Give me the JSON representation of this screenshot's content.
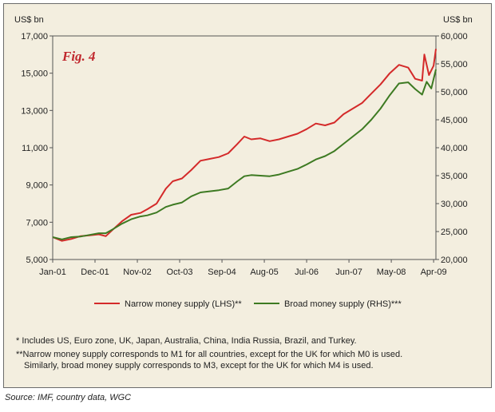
{
  "chart_data": {
    "type": "line",
    "title": "Fig. 4",
    "left_axis": {
      "unit": "US$ bn",
      "ylim": [
        5000,
        17000
      ],
      "ticks": [
        "5,000",
        "7,000",
        "9,000",
        "11,000",
        "13,000",
        "15,000",
        "17,000"
      ]
    },
    "right_axis": {
      "unit": "US$ bn",
      "ylim": [
        20000,
        60000
      ],
      "ticks": [
        "20,000",
        "25,000",
        "30,000",
        "35,000",
        "40,000",
        "45,000",
        "50,000",
        "55,000",
        "60,000"
      ]
    },
    "x_ticks": [
      "Jan-01",
      "Dec-01",
      "Nov-02",
      "Oct-03",
      "Sep-04",
      "Aug-05",
      "Jul-06",
      "Jun-07",
      "May-08",
      "Apr-09"
    ],
    "x_range": [
      2001.0,
      2009.3
    ],
    "series": [
      {
        "name": "Narrow money supply (LHS)**",
        "axis": "left",
        "color": "#d42a2a",
        "points": [
          [
            2001.0,
            6200
          ],
          [
            2001.2,
            6000
          ],
          [
            2001.4,
            6100
          ],
          [
            2001.6,
            6250
          ],
          [
            2001.8,
            6300
          ],
          [
            2002.0,
            6350
          ],
          [
            2002.15,
            6250
          ],
          [
            2002.3,
            6600
          ],
          [
            2002.5,
            7050
          ],
          [
            2002.7,
            7400
          ],
          [
            2002.9,
            7500
          ],
          [
            2003.05,
            7700
          ],
          [
            2003.25,
            8000
          ],
          [
            2003.45,
            8800
          ],
          [
            2003.6,
            9200
          ],
          [
            2003.8,
            9350
          ],
          [
            2004.0,
            9800
          ],
          [
            2004.2,
            10300
          ],
          [
            2004.4,
            10400
          ],
          [
            2004.6,
            10500
          ],
          [
            2004.8,
            10700
          ],
          [
            2005.0,
            11200
          ],
          [
            2005.15,
            11600
          ],
          [
            2005.3,
            11450
          ],
          [
            2005.5,
            11500
          ],
          [
            2005.7,
            11350
          ],
          [
            2005.9,
            11450
          ],
          [
            2006.1,
            11600
          ],
          [
            2006.3,
            11750
          ],
          [
            2006.5,
            12000
          ],
          [
            2006.7,
            12300
          ],
          [
            2006.9,
            12200
          ],
          [
            2007.1,
            12350
          ],
          [
            2007.3,
            12800
          ],
          [
            2007.5,
            13100
          ],
          [
            2007.7,
            13400
          ],
          [
            2007.9,
            13900
          ],
          [
            2008.1,
            14400
          ],
          [
            2008.3,
            15000
          ],
          [
            2008.5,
            15450
          ],
          [
            2008.7,
            15300
          ],
          [
            2008.85,
            14700
          ],
          [
            2009.0,
            14600
          ],
          [
            2009.05,
            16000
          ],
          [
            2009.15,
            14900
          ],
          [
            2009.25,
            15400
          ],
          [
            2009.3,
            16300
          ]
        ]
      },
      {
        "name": "Broad money supply (RHS)***",
        "axis": "right",
        "color": "#3d7a22",
        "points": [
          [
            2001.0,
            24000
          ],
          [
            2001.2,
            23600
          ],
          [
            2001.4,
            24000
          ],
          [
            2001.6,
            24100
          ],
          [
            2001.8,
            24400
          ],
          [
            2002.0,
            24700
          ],
          [
            2002.15,
            24700
          ],
          [
            2002.3,
            25400
          ],
          [
            2002.5,
            26400
          ],
          [
            2002.7,
            27200
          ],
          [
            2002.9,
            27700
          ],
          [
            2003.05,
            27900
          ],
          [
            2003.25,
            28400
          ],
          [
            2003.45,
            29400
          ],
          [
            2003.6,
            29800
          ],
          [
            2003.8,
            30200
          ],
          [
            2004.0,
            31300
          ],
          [
            2004.2,
            32000
          ],
          [
            2004.4,
            32200
          ],
          [
            2004.6,
            32400
          ],
          [
            2004.8,
            32700
          ],
          [
            2005.0,
            34000
          ],
          [
            2005.15,
            34900
          ],
          [
            2005.3,
            35100
          ],
          [
            2005.5,
            35000
          ],
          [
            2005.7,
            34900
          ],
          [
            2005.9,
            35200
          ],
          [
            2006.1,
            35700
          ],
          [
            2006.3,
            36200
          ],
          [
            2006.5,
            37000
          ],
          [
            2006.7,
            37900
          ],
          [
            2006.9,
            38500
          ],
          [
            2007.1,
            39400
          ],
          [
            2007.3,
            40700
          ],
          [
            2007.5,
            42000
          ],
          [
            2007.7,
            43300
          ],
          [
            2007.9,
            45000
          ],
          [
            2008.1,
            47000
          ],
          [
            2008.3,
            49400
          ],
          [
            2008.5,
            51500
          ],
          [
            2008.7,
            51700
          ],
          [
            2008.85,
            50500
          ],
          [
            2009.0,
            49500
          ],
          [
            2009.1,
            51800
          ],
          [
            2009.2,
            50600
          ],
          [
            2009.3,
            54000
          ]
        ]
      }
    ]
  },
  "notes": [
    "* Includes US, Euro zone, UK, Japan, Australia, China, India Russia, Brazil, and Turkey.",
    "**Narrow money supply corresponds to M1 for all countries, except for the UK for which M0 is used.",
    "Similarly, broad money supply corresponds to M3, except for the UK for which M4 is used."
  ],
  "source": "Source: IMF, country data, WGC"
}
